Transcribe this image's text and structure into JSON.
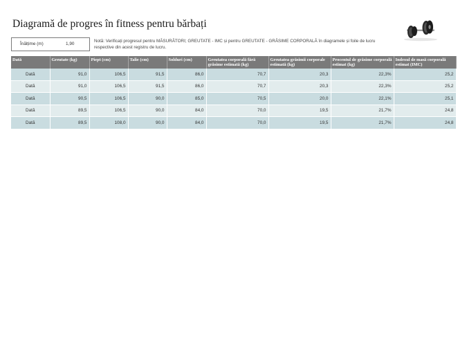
{
  "title": "Diagramă de progres în fitness pentru bărbați",
  "height": {
    "label": "Înălțime (m)",
    "value": "1,90"
  },
  "note": "Notă: Verificați progresul pentru MĂSURĂTORI; GREUTATE - IMC și pentru GREUTATE - GRĂSIME CORPORALĂ în diagramele și foile de lucru respective din acest registru de lucru.",
  "image": {
    "icon": "dumbbell-icon"
  },
  "table": {
    "headers": [
      "Dată",
      "Greutate (kg)",
      "Piept (cm)",
      "Talie (cm)",
      "Solduri (cm)",
      "Greutatea corporală fără grăsime estimată (kg)",
      "Greutatea grăsimii corporale estimată (kg)",
      "Procentul de grăsime corporală estimat (kg)",
      "Indexul de masă corporală estimat (IMC)"
    ],
    "rows": [
      [
        "Dată",
        "91,0",
        "106,5",
        "91,5",
        "86,0",
        "70,7",
        "20,3",
        "22,3%",
        "25,2"
      ],
      [
        "Dată",
        "91,0",
        "106,5",
        "91,5",
        "86,0",
        "70,7",
        "20,3",
        "22,3%",
        "25,2"
      ],
      [
        "Dată",
        "90,5",
        "106,5",
        "90,0",
        "85,0",
        "70,5",
        "20,0",
        "22,1%",
        "25,1"
      ],
      [
        "Dată",
        "89,5",
        "106,5",
        "90,0",
        "84,0",
        "70,0",
        "19,5",
        "21,7%",
        "24,8"
      ],
      [
        "Dată",
        "89,5",
        "108,0",
        "90,0",
        "84,0",
        "70,0",
        "19,5",
        "21,7%",
        "24,8"
      ]
    ]
  },
  "colors": {
    "header_bg": "#7a7a7a",
    "row_dark": "#c9dce0",
    "row_light": "#e2eced"
  }
}
